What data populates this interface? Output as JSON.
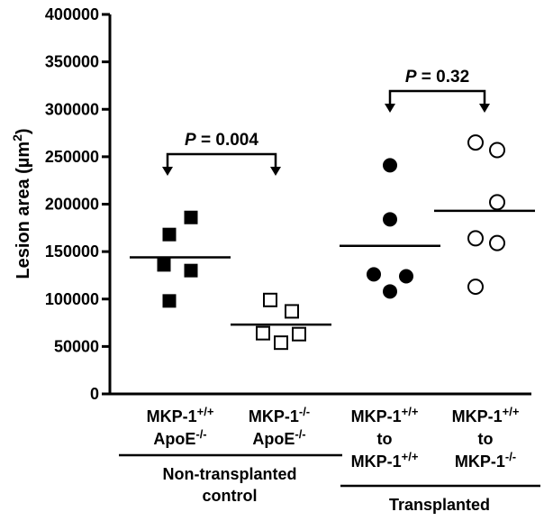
{
  "chart_data": {
    "type": "scatter",
    "ylabel": "Lesion area (µm²)",
    "ylim": [
      0,
      400000
    ],
    "yticks": [
      0,
      50000,
      100000,
      150000,
      200000,
      250000,
      300000,
      350000,
      400000
    ],
    "grid": false,
    "groups": [
      {
        "label_lines": [
          "MKP-1+/+",
          "ApoE-/-"
        ],
        "marker": "filled-square",
        "values": [
          186000,
          168000,
          136000,
          130000,
          98000
        ],
        "mean": 144000
      },
      {
        "label_lines": [
          "MKP-1-/-",
          "ApoE-/-"
        ],
        "marker": "open-square",
        "values": [
          99000,
          87000,
          64000,
          63000,
          54000
        ],
        "mean": 73000
      },
      {
        "label_lines": [
          "MKP-1+/+",
          "to",
          "MKP-1+/+"
        ],
        "marker": "filled-circle",
        "values": [
          241000,
          184000,
          126000,
          124000,
          108000
        ],
        "mean": 156000
      },
      {
        "label_lines": [
          "MKP-1+/+",
          "to",
          "MKP-1-/-"
        ],
        "marker": "open-circle",
        "values": [
          265000,
          257000,
          202000,
          164000,
          159000,
          113000
        ],
        "mean": 193000
      }
    ],
    "comparisons": [
      {
        "between": [
          0,
          1
        ],
        "p_label": "P",
        "p_value": "= 0.004"
      },
      {
        "between": [
          2,
          3
        ],
        "p_label": "P",
        "p_value": "= 0.32"
      }
    ],
    "group_captions": [
      {
        "groups": [
          0,
          1
        ],
        "lines": [
          "Non-transplanted",
          "control"
        ]
      },
      {
        "groups": [
          2,
          3
        ],
        "lines": [
          "Transplanted"
        ]
      }
    ]
  }
}
